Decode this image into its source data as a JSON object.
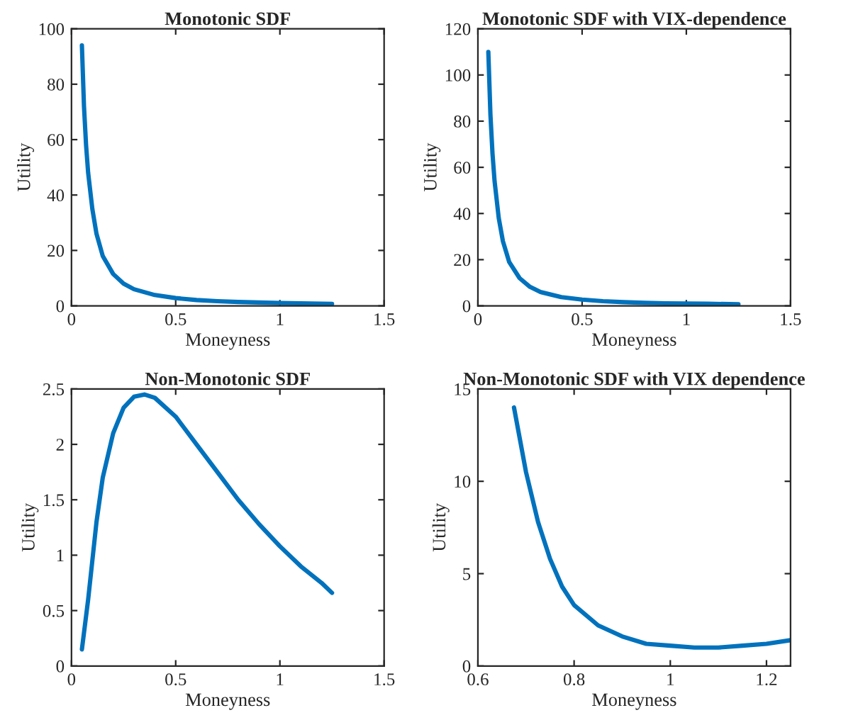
{
  "chart_data": [
    {
      "type": "line",
      "title": "Monotonic SDF",
      "xlabel": "Moneyness",
      "ylabel": "Utility",
      "xlim": [
        0,
        1.5
      ],
      "xticks": [
        0,
        0.5,
        1,
        1.5
      ],
      "ylim": [
        0,
        100
      ],
      "yticks": [
        0,
        20,
        40,
        60,
        80,
        100
      ],
      "grid": false,
      "legend": false,
      "series": [
        {
          "color": "#0072bd",
          "x": [
            0.05,
            0.06,
            0.07,
            0.08,
            0.1,
            0.12,
            0.15,
            0.2,
            0.25,
            0.3,
            0.4,
            0.5,
            0.6,
            0.7,
            0.8,
            0.9,
            1.0,
            1.1,
            1.25
          ],
          "values": [
            94,
            72,
            58,
            48,
            35,
            26,
            18,
            11.5,
            8,
            6,
            3.9,
            2.8,
            2.1,
            1.7,
            1.4,
            1.2,
            1.0,
            0.9,
            0.7
          ]
        }
      ]
    },
    {
      "type": "line",
      "title": "Monotonic SDF with VIX-dependence",
      "xlabel": "Moneyness",
      "ylabel": "Utility",
      "xlim": [
        0,
        1.5
      ],
      "xticks": [
        0,
        0.5,
        1,
        1.5
      ],
      "ylim": [
        0,
        120
      ],
      "yticks": [
        0,
        20,
        40,
        60,
        80,
        100,
        120
      ],
      "grid": false,
      "legend": false,
      "series": [
        {
          "color": "#0072bd",
          "x": [
            0.05,
            0.06,
            0.07,
            0.08,
            0.1,
            0.12,
            0.15,
            0.2,
            0.25,
            0.3,
            0.4,
            0.5,
            0.6,
            0.7,
            0.8,
            0.9,
            1.0,
            1.1,
            1.25
          ],
          "values": [
            110,
            83,
            66,
            54,
            38,
            28,
            19,
            12,
            8.2,
            6,
            3.8,
            2.7,
            2,
            1.6,
            1.3,
            1.1,
            1.0,
            0.9,
            0.7
          ]
        }
      ]
    },
    {
      "type": "line",
      "title": "Non-Monotonic SDF",
      "xlabel": "Moneyness",
      "ylabel": "Utility",
      "xlim": [
        0,
        1.5
      ],
      "xticks": [
        0,
        0.5,
        1,
        1.5
      ],
      "ylim": [
        0,
        2.5
      ],
      "yticks": [
        0,
        0.5,
        1,
        1.5,
        2,
        2.5
      ],
      "grid": false,
      "legend": false,
      "series": [
        {
          "color": "#0072bd",
          "x": [
            0.05,
            0.08,
            0.1,
            0.12,
            0.15,
            0.2,
            0.25,
            0.3,
            0.35,
            0.4,
            0.5,
            0.6,
            0.7,
            0.8,
            0.9,
            1.0,
            1.1,
            1.2,
            1.25
          ],
          "values": [
            0.15,
            0.6,
            0.95,
            1.3,
            1.7,
            2.1,
            2.33,
            2.43,
            2.45,
            2.42,
            2.25,
            2.0,
            1.75,
            1.5,
            1.28,
            1.08,
            0.9,
            0.75,
            0.66
          ]
        }
      ]
    },
    {
      "type": "line",
      "title": "Non-Monotonic SDF with VIX dependence",
      "xlabel": "Moneyness",
      "ylabel": "Utility",
      "xlim": [
        0.6,
        1.25
      ],
      "xticks": [
        0.6,
        0.8,
        1,
        1.2
      ],
      "ylim": [
        0,
        15
      ],
      "yticks": [
        0,
        5,
        10,
        15
      ],
      "grid": false,
      "legend": false,
      "series": [
        {
          "color": "#0072bd",
          "x": [
            0.675,
            0.7,
            0.725,
            0.75,
            0.775,
            0.8,
            0.85,
            0.9,
            0.95,
            1.0,
            1.05,
            1.1,
            1.15,
            1.2,
            1.25
          ],
          "values": [
            14,
            10.5,
            7.8,
            5.8,
            4.3,
            3.3,
            2.2,
            1.6,
            1.2,
            1.1,
            1.0,
            1.0,
            1.1,
            1.2,
            1.4
          ]
        }
      ]
    }
  ]
}
